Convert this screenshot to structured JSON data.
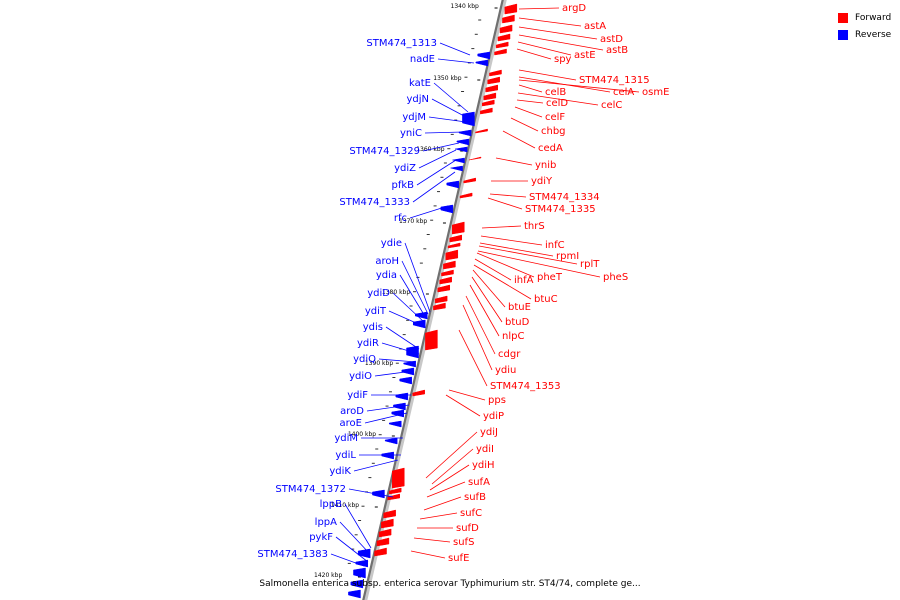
{
  "legend": {
    "forward": {
      "label": "Forward",
      "color": "#ff0000"
    },
    "reverse": {
      "label": "Reverse",
      "color": "#0000ff"
    }
  },
  "caption": "Salmonella enterica subsp. enterica serovar Typhimurium str. ST4/74, complete ge...",
  "kbp_ticks": [
    "1340 kbp",
    "1350 kbp",
    "1360 kbp",
    "1370 kbp",
    "1380 kbp",
    "1390 kbp",
    "1400 kbp",
    "1410 kbp",
    "1420 kbp"
  ],
  "forward_genes": [
    "argD",
    "astA",
    "astD",
    "astB",
    "astE",
    "spy",
    "STM474_1315",
    "celA",
    "osmE",
    "celB",
    "celC",
    "celD",
    "celF",
    "chbg",
    "cedA",
    "ynib",
    "ydiY",
    "STM474_1334",
    "STM474_1335",
    "thrS",
    "infC",
    "rpmI",
    "rplT",
    "pheS",
    "pheT",
    "ihfA",
    "btuC",
    "btuE",
    "btuD",
    "nlpC",
    "cdgr",
    "ydiu",
    "STM474_1353",
    "pps",
    "ydiP",
    "ydiJ",
    "ydiI",
    "ydiH",
    "sufA",
    "sufB",
    "sufC",
    "sufD",
    "sufS",
    "sufE"
  ],
  "reverse_genes": [
    "STM474_1313",
    "nadE",
    "katE",
    "ydjN",
    "ydjM",
    "yniC",
    "STM474_1329",
    "ydiZ",
    "pfkB",
    "STM474_1333",
    "rfc",
    "ydie",
    "aroH",
    "ydia",
    "ydiD",
    "ydiT",
    "ydis",
    "ydiR",
    "ydiQ",
    "ydiO",
    "ydiF",
    "aroD",
    "aroE",
    "ydiM",
    "ydiL",
    "ydiK",
    "STM474_1372",
    "lppB",
    "lppA",
    "pykF",
    "STM474_1383"
  ]
}
